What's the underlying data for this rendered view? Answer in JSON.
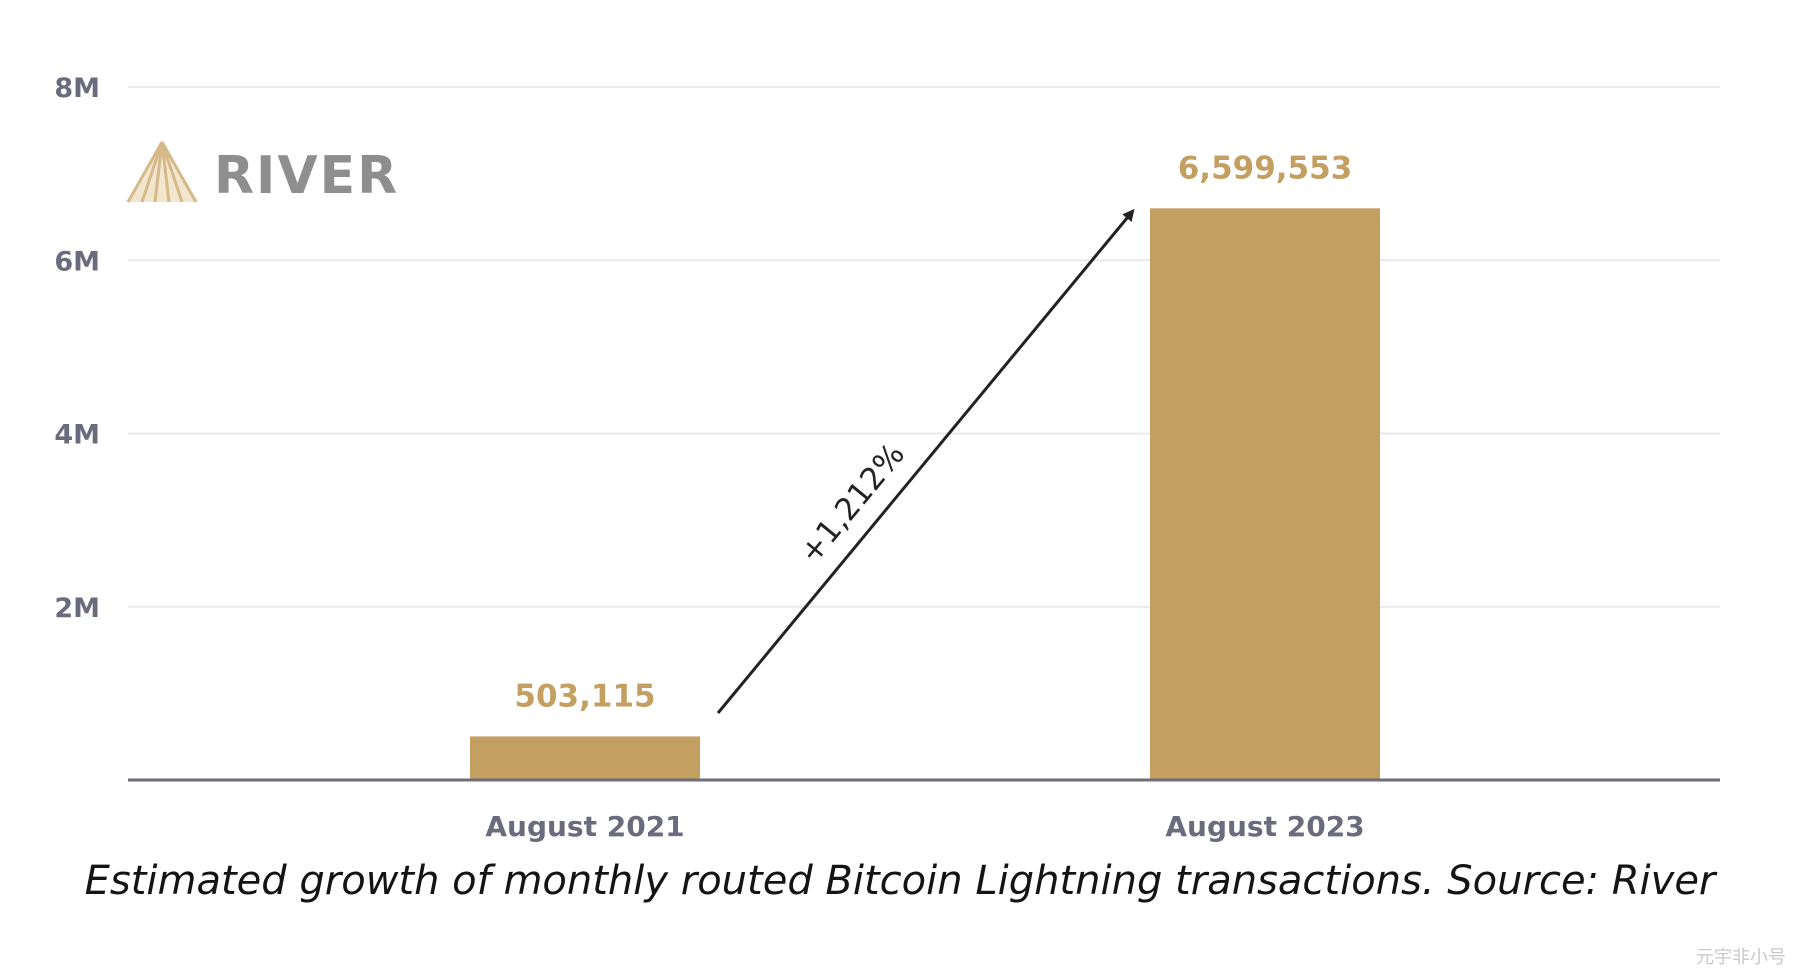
{
  "logo": {
    "text": "RIVER"
  },
  "caption": "Estimated growth of monthly routed Bitcoin Lightning transactions. Source: River",
  "watermark": "元宇非小号",
  "colors": {
    "bar": "#c39f62",
    "grid": "#e9e9ee",
    "axis": "#6e6e78",
    "label": "#6b6b7e",
    "arrow": "#222222"
  },
  "chart_data": {
    "type": "bar",
    "categories": [
      "August 2021",
      "August 2023"
    ],
    "values": [
      503115,
      6599553
    ],
    "value_labels": [
      "503,115",
      "6,599,553"
    ],
    "ylim": [
      0,
      8000000
    ],
    "y_ticks": [
      2000000,
      4000000,
      6000000,
      8000000
    ],
    "y_tick_labels": [
      "2M",
      "4M",
      "6M",
      "8M"
    ],
    "grid": true,
    "annotation": {
      "text": "+1,212%"
    }
  }
}
